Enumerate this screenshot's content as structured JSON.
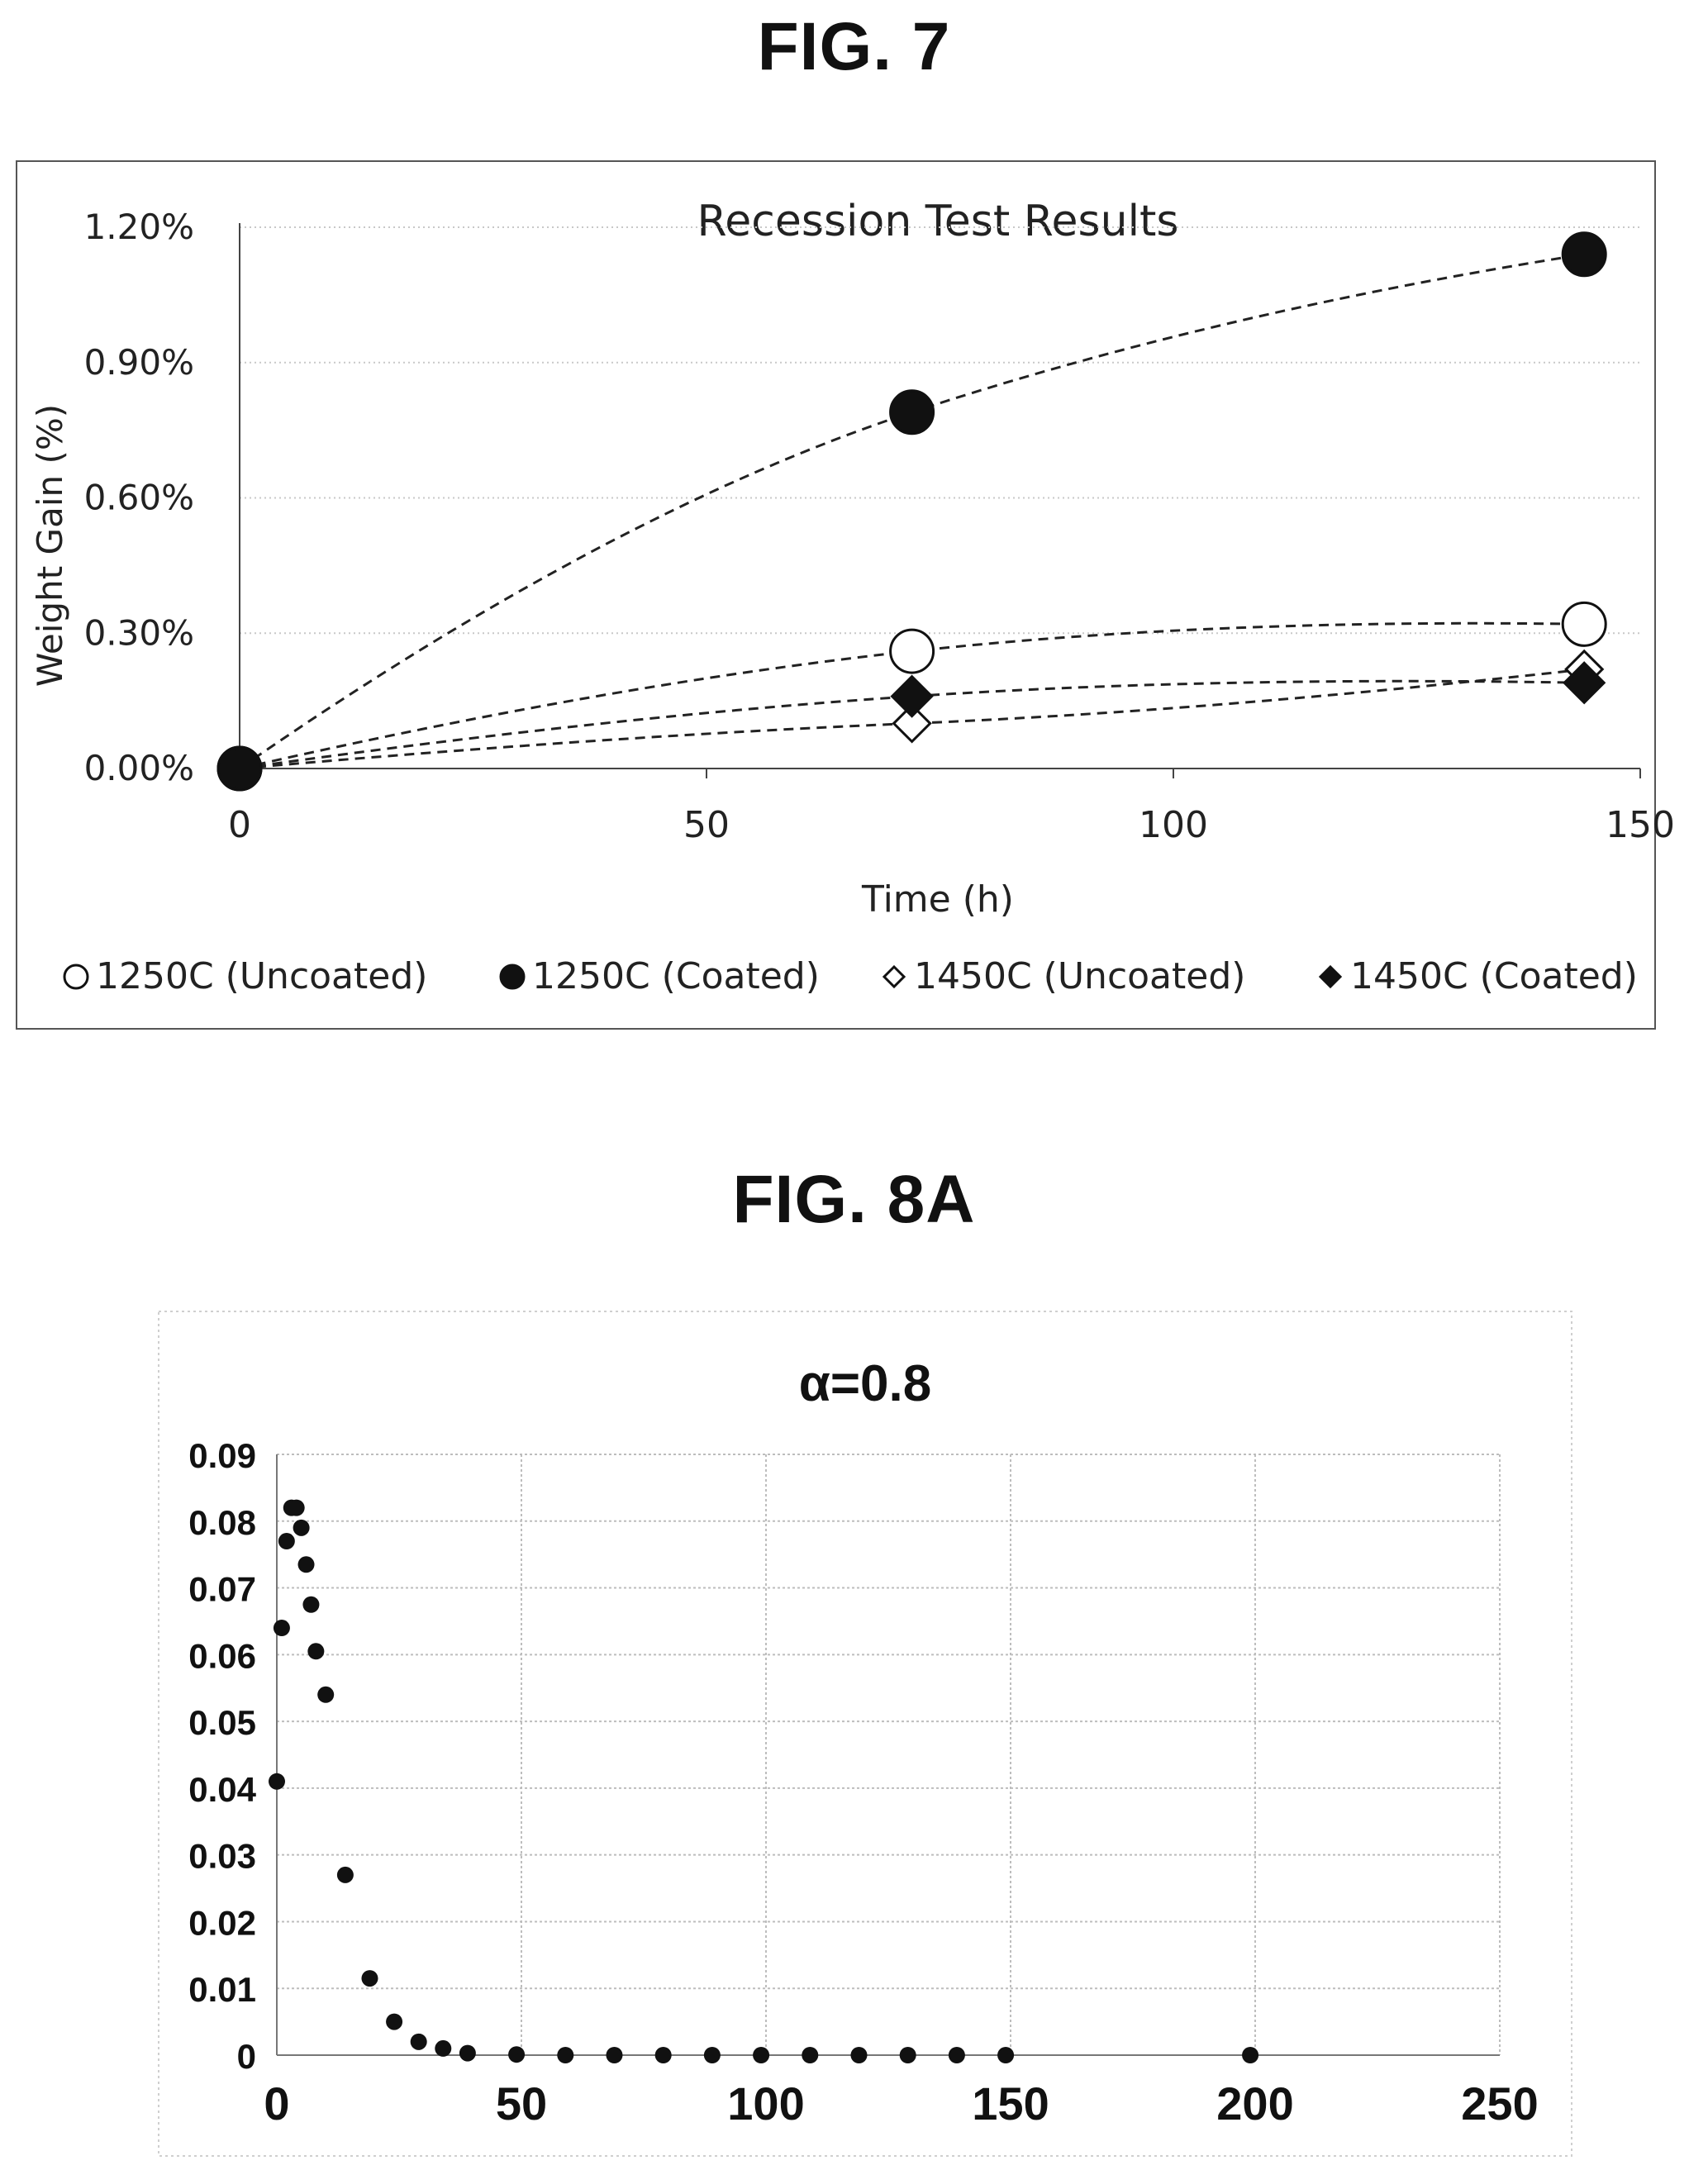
{
  "figures": {
    "fig7": {
      "label": "FIG. 7"
    },
    "fig8a": {
      "label": "FIG. 8A"
    }
  },
  "colors": {
    "ink": "#111111",
    "grid": "#bdbdbd",
    "frame": "#555555"
  },
  "chart_data": [
    {
      "type": "scatter",
      "title": "Recession Test Results",
      "xlabel": "Time (h)",
      "ylabel": "Weight Gain (%)",
      "xlim": [
        0,
        150
      ],
      "ylim": [
        0,
        0.012
      ],
      "x_ticks": [
        "0",
        "50",
        "100",
        "150"
      ],
      "y_ticks": [
        "0.00%",
        "0.30%",
        "0.60%",
        "0.90%",
        "1.20%"
      ],
      "grid": "horizontal",
      "legend": "bottom",
      "trendlines": "dashed",
      "series": [
        {
          "name": "1250C (Uncoated)",
          "marker": "open-circle",
          "points": [
            [
              0,
              0
            ],
            [
              72,
              0.0026
            ],
            [
              144,
              0.0032
            ]
          ]
        },
        {
          "name": "1250C (Coated)",
          "marker": "filled-circle",
          "points": [
            [
              0,
              0
            ],
            [
              72,
              0.0079
            ],
            [
              144,
              0.0114
            ]
          ]
        },
        {
          "name": "1450C (Uncoated)",
          "marker": "open-diamond",
          "points": [
            [
              0,
              0
            ],
            [
              72,
              0.001
            ],
            [
              144,
              0.0022
            ]
          ]
        },
        {
          "name": "1450C (Coated)",
          "marker": "filled-diamond",
          "points": [
            [
              0,
              0
            ],
            [
              72,
              0.0016
            ],
            [
              144,
              0.0019
            ]
          ]
        }
      ]
    },
    {
      "type": "scatter",
      "title": "α=0.8",
      "xlabel": "",
      "ylabel": "",
      "xlim": [
        0,
        250
      ],
      "ylim": [
        0,
        0.09
      ],
      "x_ticks": [
        "0",
        "50",
        "100",
        "150",
        "200",
        "250"
      ],
      "y_ticks": [
        "0",
        "0.01",
        "0.02",
        "0.03",
        "0.04",
        "0.05",
        "0.06",
        "0.07",
        "0.08",
        "0.09"
      ],
      "grid": "both",
      "legend": "none",
      "series": [
        {
          "marker": "filled-circle",
          "points": [
            [
              0,
              0.041
            ],
            [
              1,
              0.064
            ],
            [
              2,
              0.077
            ],
            [
              3,
              0.082
            ],
            [
              4,
              0.082
            ],
            [
              5,
              0.079
            ],
            [
              6,
              0.0735
            ],
            [
              7,
              0.0675
            ],
            [
              8,
              0.0605
            ],
            [
              10,
              0.054
            ],
            [
              14,
              0.027
            ],
            [
              19,
              0.0115
            ],
            [
              24,
              0.005
            ],
            [
              29,
              0.002
            ],
            [
              34,
              0.001
            ],
            [
              39,
              0.0003
            ],
            [
              49,
              0.0001
            ],
            [
              59,
              0.0
            ],
            [
              69,
              0.0
            ],
            [
              79,
              0.0
            ],
            [
              89,
              0.0
            ],
            [
              99,
              0.0
            ],
            [
              109,
              0.0
            ],
            [
              119,
              0.0
            ],
            [
              129,
              0.0
            ],
            [
              139,
              0.0
            ],
            [
              149,
              0.0
            ],
            [
              199,
              0.0
            ]
          ]
        }
      ]
    }
  ]
}
